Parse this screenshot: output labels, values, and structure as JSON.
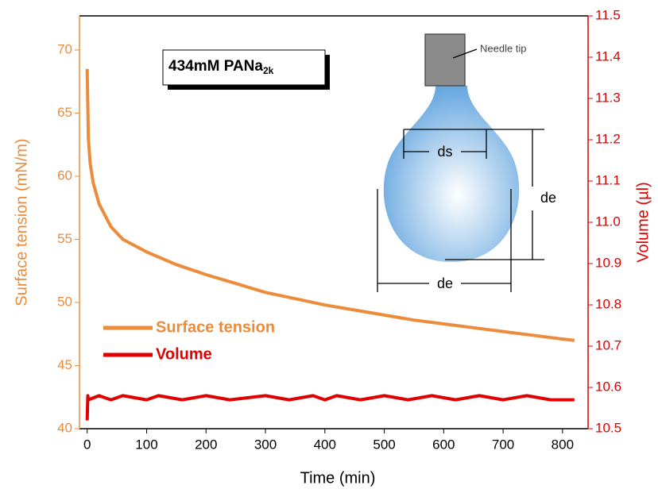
{
  "chart_data": {
    "type": "line",
    "x_label": "Time (min)",
    "y_label": "Surface tension (mN/m)",
    "y2_label": "Volume (µl)",
    "annotation": {
      "text": "434mM PANa",
      "subscript": "2k"
    },
    "inset": {
      "needle": "Needle tip",
      "ds": "ds",
      "de_vertical": "de",
      "de_horizontal": "de"
    },
    "xlim": [
      -13,
      843
    ],
    "xticks": [
      0,
      100,
      200,
      300,
      400,
      500,
      600,
      700,
      800
    ],
    "ylim": [
      40,
      72.7
    ],
    "yticks": [
      40,
      45,
      50,
      55,
      60,
      65,
      70
    ],
    "y2lim": [
      10.5,
      11.5
    ],
    "y2ticks": [
      10.5,
      10.6,
      10.7,
      10.8,
      10.9,
      {
        "value": 11,
        "label": "11.0"
      },
      11.1,
      11.2,
      11.3,
      11.4,
      11.5
    ],
    "series": [
      {
        "name": "Surface tension",
        "color": "#ec8b3a",
        "axis": "y",
        "x": [
          0,
          2,
          5,
          10,
          20,
          40,
          60,
          100,
          150,
          200,
          250,
          300,
          350,
          400,
          450,
          500,
          550,
          600,
          650,
          700,
          750,
          800,
          820
        ],
        "values": [
          68.5,
          63,
          61,
          59.5,
          57.8,
          56,
          55,
          54,
          53,
          52.2,
          51.5,
          50.8,
          50.3,
          49.8,
          49.4,
          49,
          48.6,
          48.3,
          48,
          47.7,
          47.4,
          47.1,
          47
        ]
      },
      {
        "name": "Volume",
        "color": "#e00000",
        "axis": "y2",
        "x": [
          0,
          1,
          2,
          20,
          40,
          60,
          100,
          120,
          160,
          200,
          240,
          300,
          340,
          380,
          400,
          420,
          460,
          500,
          540,
          580,
          620,
          660,
          700,
          740,
          780,
          820
        ],
        "values": [
          10.52,
          10.58,
          10.57,
          10.58,
          10.57,
          10.58,
          10.57,
          10.58,
          10.57,
          10.58,
          10.57,
          10.58,
          10.57,
          10.58,
          10.57,
          10.58,
          10.57,
          10.58,
          10.57,
          10.58,
          10.57,
          10.58,
          10.57,
          10.58,
          10.57,
          10.57
        ]
      }
    ]
  }
}
